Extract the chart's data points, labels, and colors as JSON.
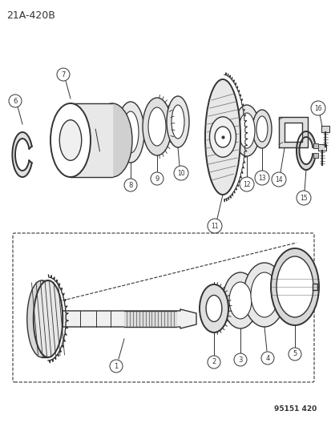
{
  "title": "21A-420B",
  "part_number": "95151 420",
  "background_color": "#ffffff",
  "line_color": "#333333",
  "fig_width": 4.14,
  "fig_height": 5.33,
  "dpi": 100
}
